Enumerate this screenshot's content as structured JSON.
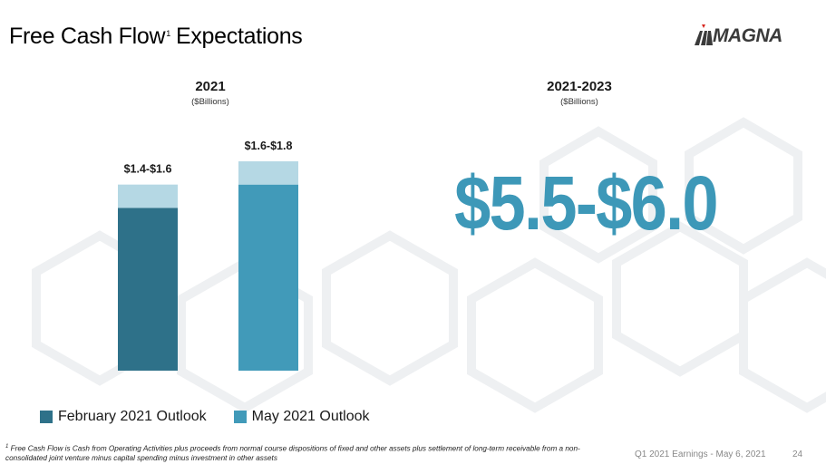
{
  "header": {
    "title_main": "Free Cash Flow",
    "title_sup": "1",
    "title_rest": "Expectations",
    "logo_text": "MAGNA"
  },
  "left_section": {
    "year": "2021",
    "unit": "($Billions)"
  },
  "right_section": {
    "year": "2021-2023",
    "unit": "($Billions)",
    "big_value": "$5.5-$6.0"
  },
  "chart_data": {
    "type": "bar",
    "title": "2021",
    "ylabel": "($Billions)",
    "categories": [
      "February 2021 Outlook",
      "May 2021 Outlook"
    ],
    "series": [
      {
        "name": "February 2021 Outlook",
        "range": [
          1.4,
          1.6
        ],
        "label": "$1.4-$1.6"
      },
      {
        "name": "May 2021 Outlook",
        "range": [
          1.6,
          1.8
        ],
        "label": "$1.6-$1.8"
      }
    ],
    "ylim": [
      0,
      1.8
    ],
    "grid": false,
    "legend_position": "bottom-left"
  },
  "legend": [
    {
      "label": "February 2021 Outlook",
      "color": "#2e7189"
    },
    {
      "label": "May 2021 Outlook",
      "color": "#419ab9"
    }
  ],
  "colors": {
    "feb_base": "#2e7189",
    "may_base": "#419ab9",
    "range_top": "#b5d8e4",
    "big_value": "#3d98b8"
  },
  "footnote": {
    "marker": "1",
    "text": "Free Cash Flow is Cash from Operating Activities plus proceeds from normal course dispositions of fixed and other assets plus settlement of long-term receivable from a non-consolidated joint venture minus capital spending minus investment in other assets"
  },
  "footer": {
    "event": "Q1 2021 Earnings - May 6, 2021",
    "page": "24"
  }
}
